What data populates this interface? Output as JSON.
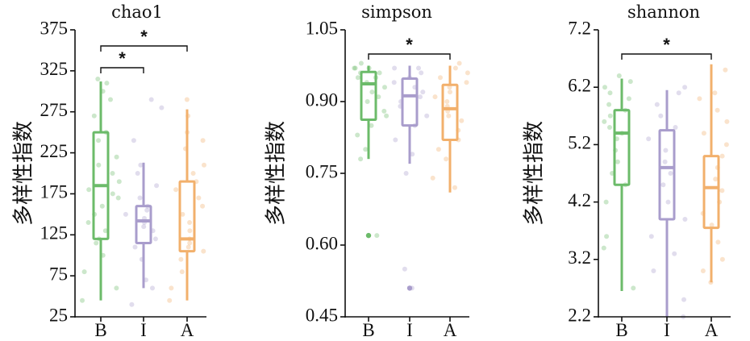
{
  "chart_data": [
    {
      "type": "box",
      "title": "chao1",
      "ylabel": "多样性指数",
      "categories": [
        "B",
        "I",
        "A"
      ],
      "ylim": [
        25,
        375
      ],
      "yticks": [
        25,
        75,
        125,
        175,
        225,
        275,
        325,
        375
      ],
      "ytick_labels": [
        "25",
        "75",
        "125",
        "175",
        "225",
        "275",
        "325",
        "375"
      ],
      "boxes": [
        {
          "category": "B",
          "whisker_low": 45,
          "q1": 120,
          "median": 185,
          "q3": 250,
          "whisker_high": 312
        },
        {
          "category": "I",
          "whisker_low": 60,
          "q1": 115,
          "median": 142,
          "q3": 160,
          "whisker_high": 213
        },
        {
          "category": "A",
          "whisker_low": 45,
          "q1": 105,
          "median": 120,
          "q3": 190,
          "whisker_high": 278
        }
      ],
      "points": [
        [
          45,
          60,
          80,
          100,
          115,
          120,
          130,
          140,
          150,
          160,
          170,
          175,
          180,
          190,
          200,
          210,
          220,
          240,
          250,
          270,
          290,
          300,
          310,
          315
        ],
        [
          40,
          60,
          70,
          95,
          110,
          120,
          130,
          135,
          140,
          145,
          150,
          155,
          160,
          170,
          185,
          200,
          210,
          240,
          280,
          290
        ],
        [
          45,
          60,
          80,
          95,
          105,
          110,
          115,
          120,
          130,
          140,
          150,
          160,
          170,
          180,
          190,
          200,
          210,
          230,
          240,
          250,
          270,
          290
        ]
      ],
      "significance": [
        {
          "from": "B",
          "to": "I",
          "label": "*"
        },
        {
          "from": "B",
          "to": "A",
          "label": "*"
        }
      ]
    },
    {
      "type": "box",
      "title": "simpson",
      "ylabel": "多样性指数",
      "categories": [
        "B",
        "I",
        "A"
      ],
      "ylim": [
        0.45,
        1.05
      ],
      "yticks": [
        0.45,
        0.6,
        0.75,
        0.9,
        1.05
      ],
      "ytick_labels": [
        "0.45",
        "0.60",
        "0.75",
        "0.90",
        "1.05"
      ],
      "boxes": [
        {
          "category": "B",
          "whisker_low": 0.78,
          "q1": 0.862,
          "median": 0.937,
          "q3": 0.962,
          "whisker_high": 0.975
        },
        {
          "category": "I",
          "whisker_low": 0.77,
          "q1": 0.85,
          "median": 0.912,
          "q3": 0.948,
          "whisker_high": 0.975
        },
        {
          "category": "A",
          "whisker_low": 0.71,
          "q1": 0.82,
          "median": 0.885,
          "q3": 0.935,
          "whisker_high": 0.975
        }
      ],
      "outliers": [
        {
          "category": "B",
          "value": 0.62
        },
        {
          "category": "I",
          "value": 0.51
        }
      ],
      "points": [
        [
          0.62,
          0.78,
          0.8,
          0.83,
          0.85,
          0.87,
          0.88,
          0.9,
          0.91,
          0.92,
          0.93,
          0.94,
          0.95,
          0.95,
          0.96,
          0.96,
          0.97,
          0.97,
          0.97,
          0.98
        ],
        [
          0.51,
          0.55,
          0.75,
          0.79,
          0.82,
          0.85,
          0.87,
          0.89,
          0.9,
          0.91,
          0.92,
          0.93,
          0.94,
          0.95,
          0.96,
          0.97,
          0.97
        ],
        [
          0.72,
          0.74,
          0.78,
          0.8,
          0.82,
          0.84,
          0.86,
          0.87,
          0.88,
          0.89,
          0.9,
          0.91,
          0.92,
          0.93,
          0.94,
          0.95,
          0.96,
          0.97,
          0.98
        ]
      ],
      "significance": [
        {
          "from": "B",
          "to": "A",
          "label": "*"
        }
      ]
    },
    {
      "type": "box",
      "title": "shannon",
      "ylabel": "多样性指数",
      "categories": [
        "B",
        "I",
        "A"
      ],
      "ylim": [
        2.2,
        7.2
      ],
      "yticks": [
        2.2,
        3.2,
        4.2,
        5.2,
        6.2,
        7.2
      ],
      "ytick_labels": [
        "2.2",
        "3.2",
        "4.2",
        "5.2",
        "6.2",
        "7.2"
      ],
      "boxes": [
        {
          "category": "B",
          "whisker_low": 2.65,
          "q1": 4.5,
          "median": 5.4,
          "q3": 5.8,
          "whisker_high": 6.35
        },
        {
          "category": "I",
          "whisker_low": 2.2,
          "q1": 3.9,
          "median": 4.8,
          "q3": 5.45,
          "whisker_high": 6.15
        },
        {
          "category": "A",
          "whisker_low": 2.8,
          "q1": 3.75,
          "median": 4.45,
          "q3": 5.0,
          "whisker_high": 6.6
        }
      ],
      "points": [
        [
          2.7,
          3.4,
          3.6,
          4.2,
          4.5,
          4.7,
          4.9,
          5.1,
          5.3,
          5.4,
          5.5,
          5.6,
          5.7,
          5.8,
          5.9,
          6.0,
          6.1,
          6.2,
          6.3,
          6.4
        ],
        [
          2.2,
          2.5,
          3.0,
          3.3,
          3.6,
          3.9,
          4.2,
          4.5,
          4.7,
          4.9,
          5.1,
          5.3,
          5.5,
          5.7,
          5.9,
          6.1,
          6.2
        ],
        [
          2.8,
          3.0,
          3.2,
          3.5,
          3.8,
          4.0,
          4.2,
          4.4,
          4.6,
          4.8,
          5.0,
          5.2,
          5.4,
          5.6,
          5.8,
          6.0,
          6.1,
          6.5
        ]
      ],
      "significance": [
        {
          "from": "B",
          "to": "A",
          "label": "*"
        }
      ]
    }
  ],
  "colors": {
    "B": "#6cbb6a",
    "I": "#a99dcc",
    "A": "#f2b06c",
    "axis": "#111111"
  }
}
